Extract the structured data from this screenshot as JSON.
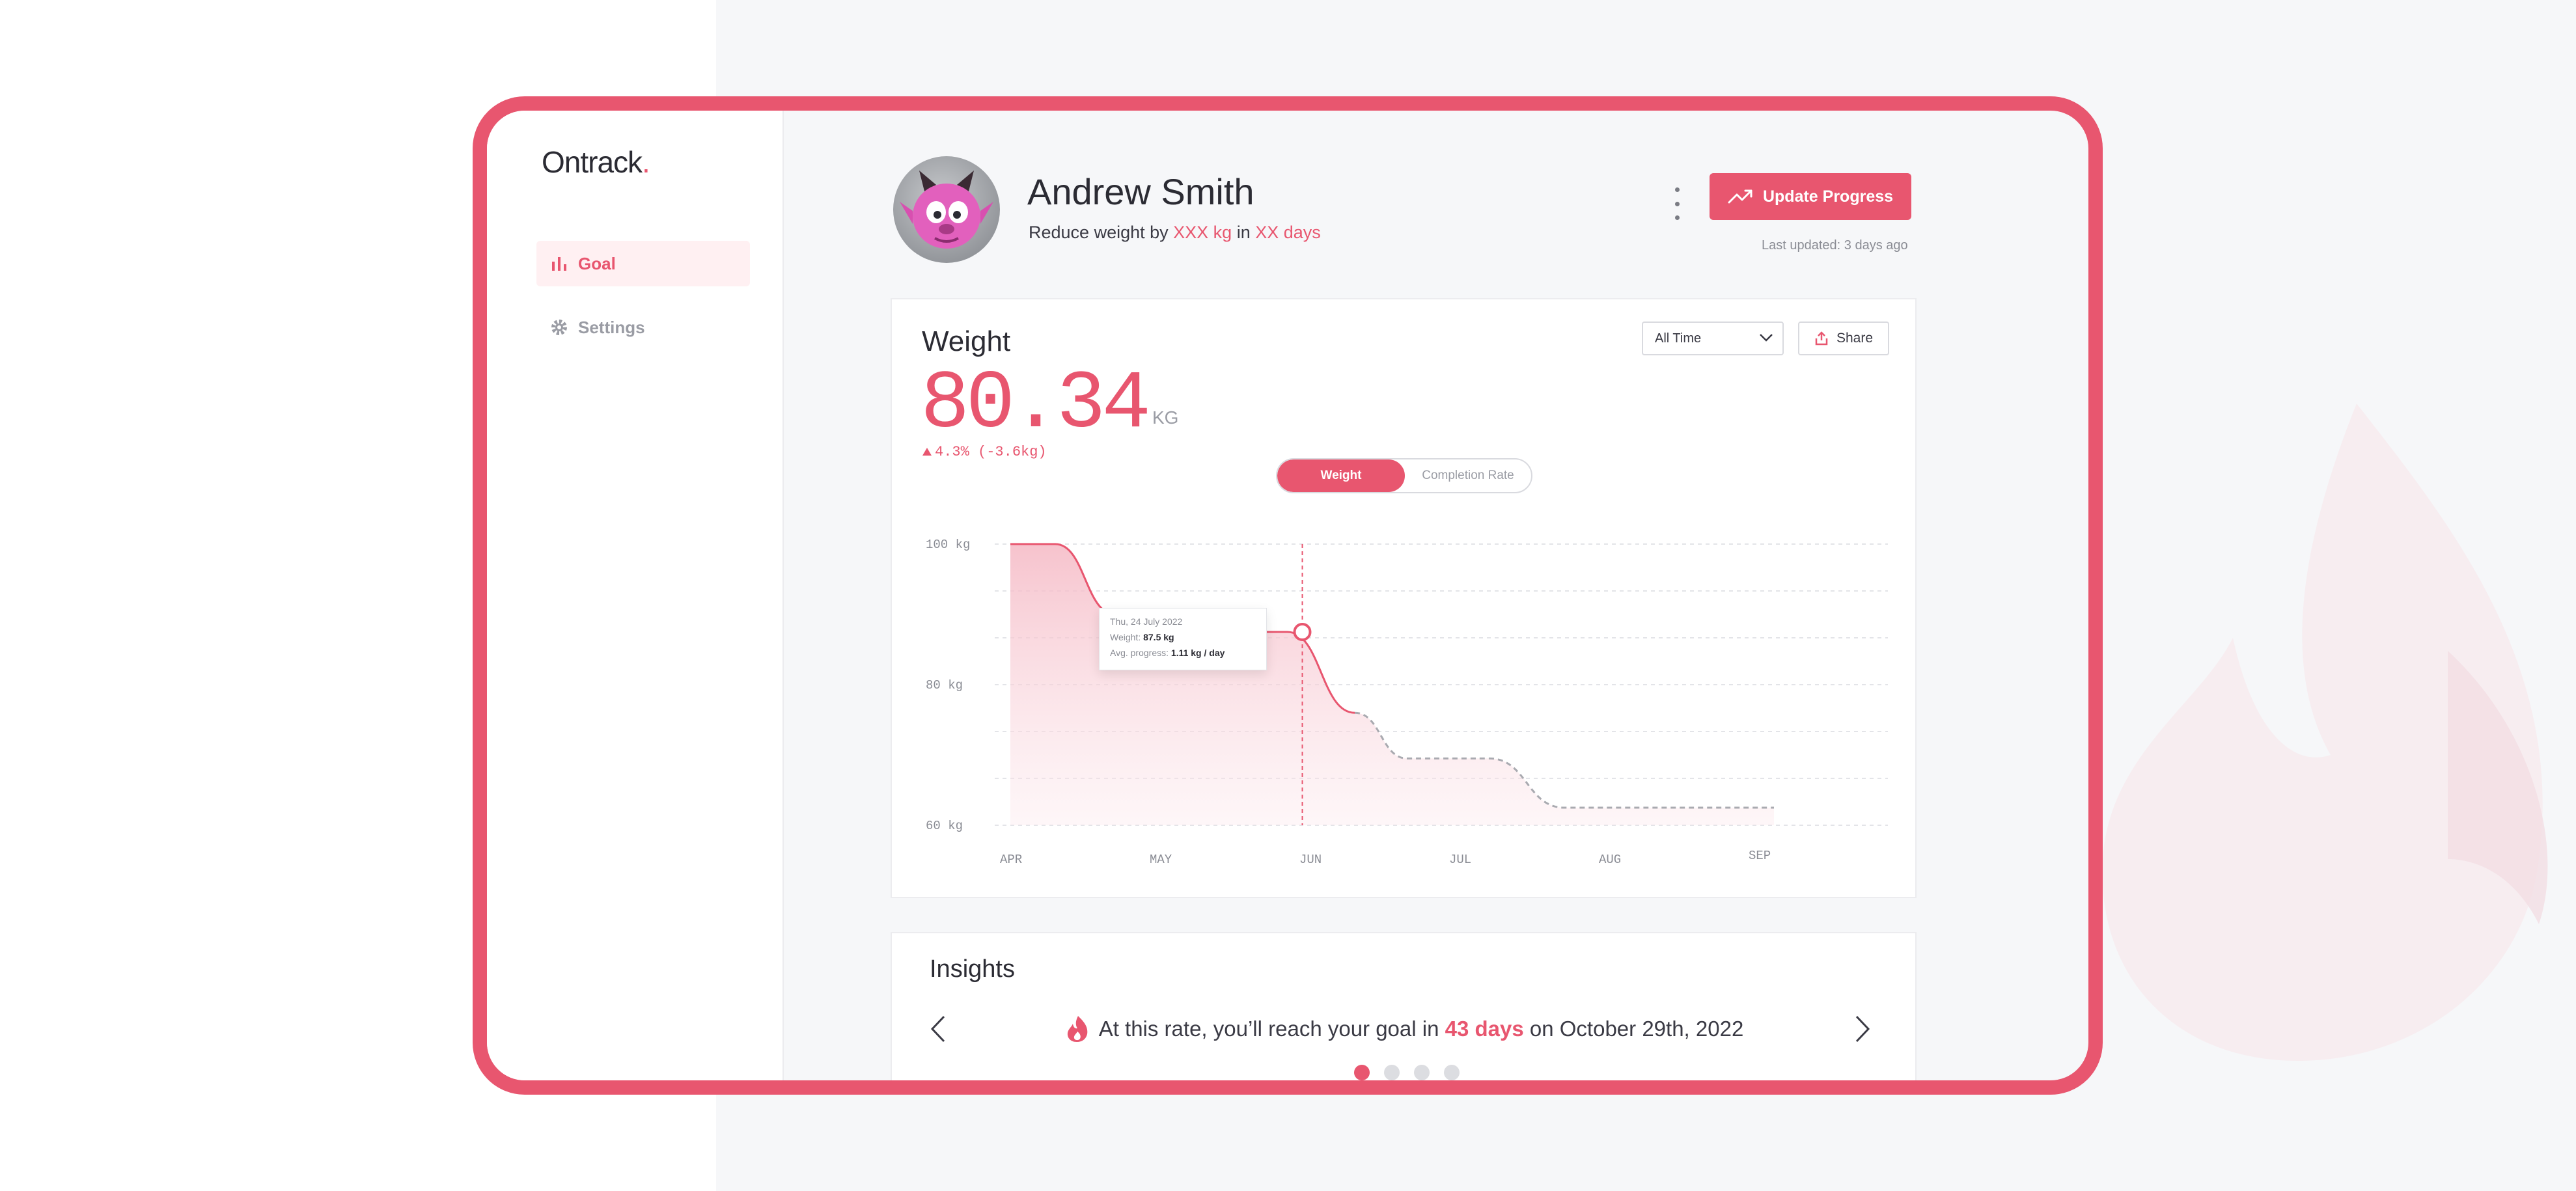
{
  "app": {
    "logo": "Ontrack",
    "logo_dot": "."
  },
  "sidebar": {
    "items": [
      {
        "label": "Goal",
        "icon": "bar-chart-icon",
        "active": true
      },
      {
        "label": "Settings",
        "icon": "gear-icon",
        "active": false
      }
    ]
  },
  "header": {
    "name": "Andrew Smith",
    "goal_prefix": "Reduce weight by ",
    "goal_amount": "XXX kg",
    "goal_mid": " in ",
    "goal_duration": "XX days",
    "update_button": "Update Progress",
    "last_updated": "Last updated: 3 days ago"
  },
  "weight_card": {
    "title": "Weight",
    "value": "80.34",
    "unit": "KG",
    "change": "4.3% (-3.6kg)",
    "range_select": "All Time",
    "share_button": "Share",
    "toggle": {
      "active": "Weight",
      "inactive": "Completion Rate"
    },
    "tooltip": {
      "date": "Thu, 24 July 2022",
      "weight_label": "Weight: ",
      "weight_value": "87.5 kg",
      "progress_label": "Avg. progress: ",
      "progress_value": "1.11 kg / day"
    }
  },
  "chart_data": {
    "type": "area",
    "x_labels": [
      "APR",
      "MAY",
      "JUN",
      "JUL",
      "AUG",
      "SEP"
    ],
    "y_ticks": [
      "100 kg",
      "80 kg",
      "60 kg"
    ],
    "ylim": [
      60,
      100
    ],
    "actual": [
      {
        "x": 0,
        "y": 100
      },
      {
        "x": 0.3,
        "y": 100
      },
      {
        "x": 0.7,
        "y": 90
      },
      {
        "x": 1.1,
        "y": 90
      },
      {
        "x": 1.6,
        "y": 87.5
      },
      {
        "x": 1.85,
        "y": 87.5
      },
      {
        "x": 2.3,
        "y": 76
      }
    ],
    "projected": [
      {
        "x": 2.3,
        "y": 76
      },
      {
        "x": 2.65,
        "y": 69.5
      },
      {
        "x": 3.2,
        "y": 69.5
      },
      {
        "x": 3.7,
        "y": 62.5
      },
      {
        "x": 5.1,
        "y": 62.5
      }
    ],
    "marker": {
      "x": 1.95,
      "y": 87.5
    },
    "colors": {
      "accent": "#e8566f",
      "projected": "#a9aab0"
    }
  },
  "insights": {
    "title": "Insights",
    "message_prefix": "At this rate, you’ll reach your goal in ",
    "message_highlight": "43 days",
    "message_suffix": " on October 29th, 2022",
    "icon": "flame-icon",
    "pages": 4,
    "active_page": 0
  }
}
